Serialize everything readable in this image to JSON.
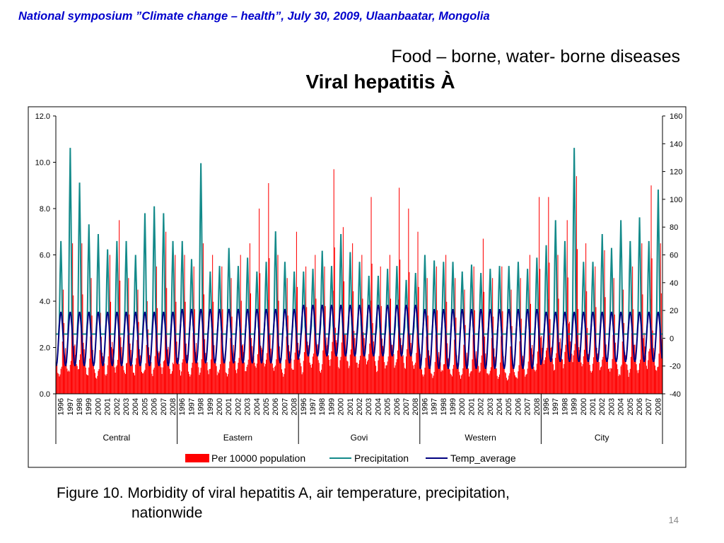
{
  "header": {
    "text": "National symposium ”Climate change – health”, July 30, 2009, Ulaanbaatar, Mongolia"
  },
  "slide": {
    "subtitle": "Food – borne, water- borne diseases",
    "title": "Viral hepatitis À",
    "caption_line1": "Figure 10. Morbidity of viral hepatitis A, air temperature, precipitation,",
    "caption_line2": "nationwide",
    "page_number": "14"
  },
  "chart_data": {
    "type": "bar+line",
    "regions": [
      "Central",
      "Eastern",
      "Govi",
      "Western",
      "City"
    ],
    "years": [
      "1996",
      "1997",
      "1998",
      "1999",
      "2000",
      "2001",
      "2002",
      "2003",
      "2004",
      "2005",
      "2006",
      "2007",
      "2008"
    ],
    "months_per_year": 12,
    "left_axis": {
      "ylim": [
        0,
        12
      ],
      "ticks": [
        "0.0",
        "2.0",
        "4.0",
        "6.0",
        "8.0",
        "10.0",
        "12.0"
      ]
    },
    "right_axis": {
      "ylim": [
        -40,
        160
      ],
      "ticks": [
        "-40",
        "-20",
        "0",
        "20",
        "40",
        "60",
        "80",
        "100",
        "120",
        "140",
        "160"
      ]
    },
    "series": [
      {
        "name": "Per 10000 population",
        "kind": "bar",
        "axis": "left",
        "color": "#ff0000",
        "yearly_peak": [
          [
            4.5,
            6.5,
            6.5,
            5.0,
            3.5,
            6.0,
            7.5,
            5.0,
            4.5,
            4.0,
            5.5,
            7.0,
            6.0
          ],
          [
            6.0,
            5.5,
            6.5,
            6.0,
            5.5,
            5.0,
            6.0,
            6.5,
            8.0,
            9.1,
            6.0,
            5.0,
            7.0
          ],
          [
            5.5,
            6.0,
            5.5,
            9.7,
            7.2,
            6.5,
            6.0,
            8.5,
            5.5,
            6.0,
            8.9,
            8.0,
            7.0
          ],
          [
            5.0,
            5.5,
            6.0,
            5.0,
            4.5,
            5.5,
            6.7,
            5.0,
            5.5,
            4.5,
            5.0,
            6.0,
            8.5
          ],
          [
            8.5,
            6.0,
            7.5,
            9.4,
            6.5,
            5.5,
            6.2,
            5.0,
            4.5,
            5.5,
            6.5,
            9.0,
            6.5
          ]
        ],
        "yearly_base": [
          [
            1.3,
            1.5,
            1.6,
            1.4,
            1.2,
            1.5,
            1.7,
            1.5,
            1.4,
            1.3,
            1.5,
            1.6,
            1.5
          ],
          [
            1.5,
            1.4,
            1.6,
            1.5,
            1.4,
            1.3,
            1.6,
            1.7,
            1.8,
            1.9,
            1.6,
            1.4,
            1.7
          ],
          [
            1.6,
            1.8,
            1.7,
            2.2,
            2.0,
            1.9,
            1.8,
            2.1,
            1.7,
            1.8,
            2.0,
            1.9,
            1.7
          ],
          [
            1.4,
            1.3,
            1.5,
            1.2,
            1.1,
            1.3,
            1.6,
            1.3,
            1.2,
            1.0,
            1.1,
            1.3,
            1.6
          ],
          [
            2.2,
            1.8,
            2.0,
            2.4,
            1.9,
            1.6,
            1.7,
            1.5,
            1.3,
            1.4,
            1.6,
            2.0,
            1.7
          ]
        ]
      },
      {
        "name": "Precipitation",
        "kind": "line",
        "axis": "right",
        "color": "#138a8a",
        "yearly_peak": [
          [
            70,
            137,
            112,
            82,
            75,
            64,
            70,
            70,
            60,
            90,
            95,
            90,
            70
          ],
          [
            70,
            57,
            126,
            48,
            52,
            65,
            52,
            58,
            48,
            55,
            77,
            55,
            48
          ],
          [
            48,
            50,
            63,
            52,
            75,
            62,
            55,
            45,
            45,
            50,
            52,
            42,
            47
          ],
          [
            60,
            56,
            55,
            55,
            48,
            53,
            47,
            50,
            52,
            52,
            55,
            50,
            58
          ],
          [
            67,
            85,
            70,
            137,
            55,
            55,
            75,
            65,
            85,
            70,
            87,
            70,
            107
          ]
        ],
        "yearly_base": [
          3,
          3,
          3,
          3,
          3
        ]
      },
      {
        "name": "Temp_average",
        "kind": "line",
        "axis": "right",
        "color": "#000080",
        "summer_max": [
          19,
          21,
          24,
          21,
          19
        ],
        "winter_min": [
          -20,
          -18,
          -13,
          -22,
          -17
        ]
      }
    ],
    "legend_position": "bottom",
    "grid": false
  }
}
